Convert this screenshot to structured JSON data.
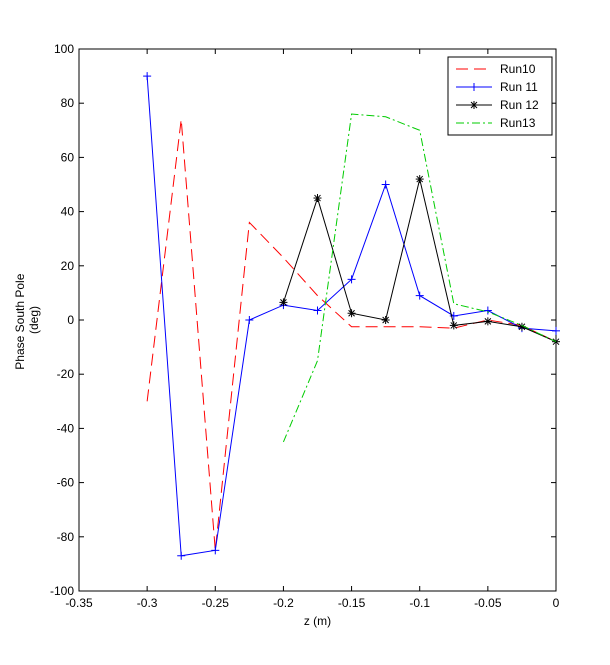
{
  "chart_data": {
    "type": "line",
    "title": "",
    "xlabel": "z (m)",
    "ylabel_lines": [
      "Phase South Pole",
      "(deg)"
    ],
    "xlim": [
      -0.35,
      0
    ],
    "ylim": [
      -100,
      100
    ],
    "xticks": [
      -0.35,
      -0.3,
      -0.25,
      -0.2,
      -0.15,
      -0.1,
      -0.05,
      0
    ],
    "xtick_labels": [
      "-0.35",
      "-0.3",
      "-0.25",
      "-0.2",
      "-0.15",
      "-0.1",
      "-0.05",
      "0"
    ],
    "yticks": [
      -100,
      -80,
      -60,
      -40,
      -20,
      0,
      20,
      40,
      60,
      80,
      100
    ],
    "ytick_labels": [
      "-100",
      "-80",
      "-60",
      "-40",
      "-20",
      "0",
      "20",
      "40",
      "60",
      "80",
      "100"
    ],
    "grid": false,
    "legend_position": "top-right",
    "series": [
      {
        "name": "Run10",
        "color": "#ff0000",
        "dash": "dashed",
        "marker": "none",
        "x": [
          -0.3,
          -0.275,
          -0.25,
          -0.225,
          -0.2,
          -0.175,
          -0.15,
          -0.125,
          -0.1,
          -0.075,
          -0.05,
          -0.025,
          0
        ],
        "y": [
          -30,
          74,
          -85,
          36,
          23,
          9,
          -2.5,
          -2.5,
          -2.5,
          -3,
          0,
          -2,
          -8
        ]
      },
      {
        "name": "Run 11",
        "color": "#0000ff",
        "dash": "solid",
        "marker": "plus",
        "x": [
          -0.3,
          -0.275,
          -0.25,
          -0.225,
          -0.2,
          -0.175,
          -0.15,
          -0.125,
          -0.1,
          -0.075,
          -0.05,
          -0.025,
          0
        ],
        "y": [
          90,
          -87,
          -85,
          0,
          5.5,
          3.5,
          15,
          50,
          9,
          1.5,
          3.5,
          -3,
          -4
        ]
      },
      {
        "name": "Run 12",
        "color": "#000000",
        "dash": "solid",
        "marker": "star",
        "x": [
          -0.2,
          -0.175,
          -0.15,
          -0.125,
          -0.1,
          -0.075,
          -0.05,
          -0.025,
          0
        ],
        "y": [
          6.5,
          45,
          2.5,
          0,
          52,
          -2,
          -0.5,
          -2.5,
          -8
        ]
      },
      {
        "name": "Run13",
        "color": "#00cc00",
        "dash": "dashdot",
        "marker": "none",
        "x": [
          -0.2,
          -0.175,
          -0.15,
          -0.125,
          -0.1,
          -0.075,
          -0.05,
          -0.025,
          0
        ],
        "y": [
          -45,
          -15,
          76,
          75,
          70,
          6,
          3,
          -2,
          -8
        ]
      }
    ]
  }
}
